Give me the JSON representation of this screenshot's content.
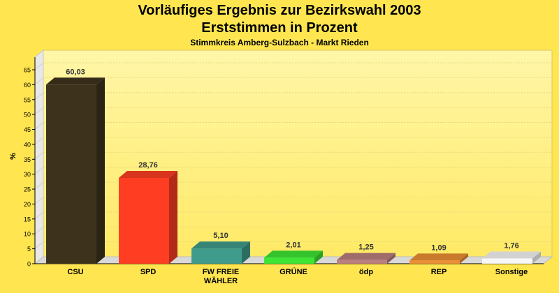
{
  "title": "Vorläufiges Ergebnis zur Bezirkswahl 2003",
  "subtitle": "Erststimmen in Prozent",
  "subsubtitle": "Stimmkreis Amberg-Sulzbach - Markt Rieden",
  "chart_data": {
    "type": "bar",
    "ylabel": "%",
    "xlabel": "",
    "ylim": [
      0,
      70
    ],
    "yticks": [
      0,
      5,
      10,
      15,
      20,
      25,
      30,
      35,
      40,
      45,
      50,
      55,
      60,
      65
    ],
    "grid": true,
    "categories": [
      [
        "CSU"
      ],
      [
        "SPD"
      ],
      [
        "FW FREIE",
        "WÄHLER"
      ],
      [
        "GRÜNE"
      ],
      [
        "ödp"
      ],
      [
        "REP"
      ],
      [
        "Sonstige"
      ]
    ],
    "values": [
      60.03,
      28.76,
      5.1,
      2.01,
      1.25,
      1.09,
      1.76
    ],
    "value_labels": [
      "60,03",
      "28,76",
      "5,10",
      "2,01",
      "1,25",
      "1,09",
      "1,76"
    ],
    "colors": [
      "#3d331d",
      "#ff3d22",
      "#3f9c8c",
      "#3ee534",
      "#bb7f7f",
      "#ec8f34",
      "#f7f7f7"
    ]
  }
}
